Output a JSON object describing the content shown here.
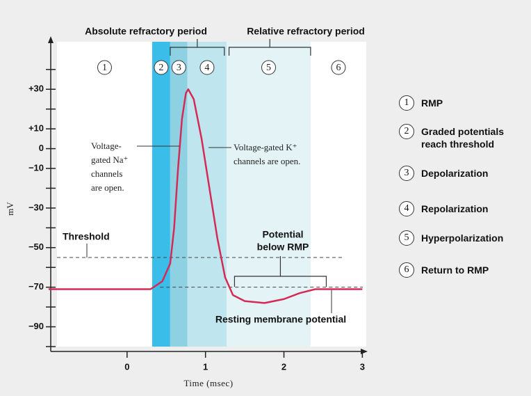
{
  "chart_data": {
    "type": "line",
    "x_label": "Time (msec)",
    "y_label": "mV",
    "xlim": [
      -1,
      3.05
    ],
    "ylim": [
      -100,
      54
    ],
    "xticks": [
      0,
      1,
      2,
      3
    ],
    "yticks": [
      {
        "value": 30,
        "label": "+30"
      },
      {
        "value": 10,
        "label": "+10"
      },
      0,
      {
        "value": -10,
        "label": "−10"
      },
      {
        "value": -30,
        "label": "−30"
      },
      {
        "value": -50,
        "label": "−50"
      },
      {
        "value": -70,
        "label": "−70"
      },
      {
        "value": -90,
        "label": "−90"
      }
    ],
    "minor_yticks": [
      40,
      20,
      -20,
      -40,
      -60,
      -80,
      -100
    ],
    "x": [
      -1,
      0.3,
      0.45,
      0.55,
      0.6,
      0.65,
      0.7,
      0.75,
      0.78,
      0.85,
      0.95,
      1.05,
      1.15,
      1.25,
      1.35,
      1.5,
      1.75,
      2.0,
      2.2,
      2.4,
      3.0
    ],
    "series": [
      {
        "color": "#d42a56",
        "values": [
          -71,
          -71,
          -67,
          -58,
          -40,
          -10,
          15,
          28,
          30,
          25,
          5,
          -20,
          -45,
          -65,
          -74,
          -77,
          -78,
          -76,
          -73,
          -71,
          -71
        ]
      }
    ],
    "phases": [
      {
        "number": "1",
        "label": "RMP",
        "end": 0.32
      },
      {
        "number": "2",
        "label": "Graded potentials reach threshold",
        "start": 0.32,
        "end": 0.55,
        "color": "#3bbde9"
      },
      {
        "number": "3",
        "label": "Depolarization",
        "start": 0.55,
        "end": 0.77,
        "color": "#8ed1e3"
      },
      {
        "number": "4",
        "label": "Repolarization",
        "start": 0.77,
        "end": 1.27,
        "color": "#bfe6ee"
      },
      {
        "number": "5",
        "label": "Hyperpolarization",
        "start": 1.27,
        "end": 2.34,
        "color": "#e4f4f6"
      },
      {
        "number": "6",
        "label": "Return to RMP",
        "start": 2.34
      }
    ],
    "periods": [
      {
        "label": "Absolute refractory period",
        "start": 0.55,
        "end": 1.24
      },
      {
        "label": "Relative refractory period",
        "start": 1.3,
        "end": 2.34
      }
    ],
    "threshold": {
      "label": "Threshold",
      "value": -55,
      "end": 2.74
    },
    "resting": {
      "label": "Resting membrane potential",
      "value": -70,
      "start": 0.42
    },
    "below_rmp": {
      "lines": [
        "Potential",
        "below RMP"
      ],
      "start": 1.37,
      "end": 2.54
    },
    "na_note": [
      "Voltage-",
      "gated Na⁺",
      "channels",
      "are open."
    ],
    "k_note": [
      "Voltage-gated K⁺",
      "channels are open."
    ]
  }
}
